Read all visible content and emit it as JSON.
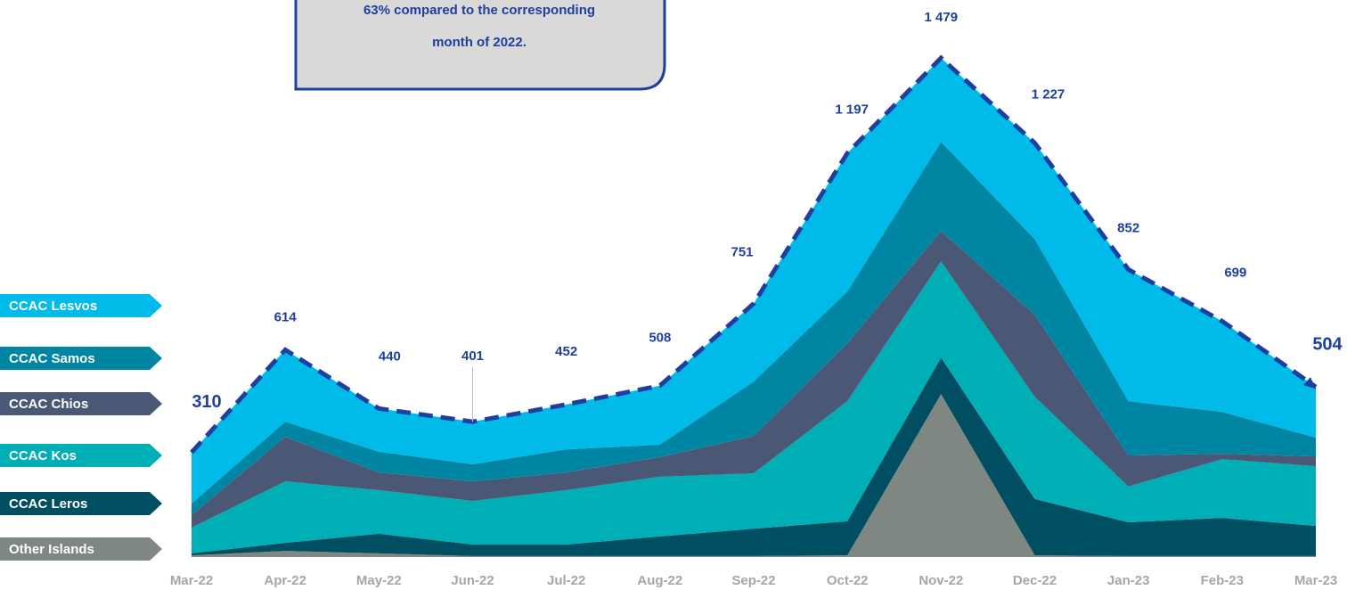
{
  "chart_data": {
    "type": "stacked_area",
    "annotation": [
      "63% compared to the corresponding",
      "month of 2022."
    ],
    "categories": [
      "Mar-22",
      "Apr-22",
      "May-22",
      "Jun-22",
      "Jul-22",
      "Aug-22",
      "Sep-22",
      "Oct-22",
      "Nov-22",
      "Dec-22",
      "Jan-23",
      "Feb-23",
      "Mar-23"
    ],
    "series": [
      {
        "name": "CCAC Lesvos",
        "color": "#00bbea",
        "values": [
          152,
          213,
          128,
          126,
          133,
          175,
          231,
          410,
          249,
          285,
          390,
          269,
          150
        ]
      },
      {
        "name": "CCAC Samos",
        "color": "#0086a3",
        "values": [
          34,
          45,
          61,
          51,
          68,
          37,
          161,
          153,
          264,
          224,
          161,
          124,
          56
        ]
      },
      {
        "name": "CCAC Chios",
        "color": "#4a5876",
        "values": [
          37,
          132,
          53,
          58,
          53,
          58,
          111,
          172,
          90,
          243,
          92,
          16,
          29
        ]
      },
      {
        "name": "CCAC Kos",
        "color": "#00aeb5",
        "values": [
          76,
          182,
          129,
          129,
          161,
          177,
          164,
          356,
          285,
          303,
          106,
          174,
          177
        ]
      },
      {
        "name": "CCAC Leros",
        "color": "#004e61",
        "values": [
          6,
          24,
          58,
          34,
          34,
          58,
          81,
          101,
          108,
          167,
          100,
          113,
          89
        ]
      },
      {
        "name": "Other Islands",
        "color": "#7f8783",
        "values": [
          5,
          18,
          11,
          3,
          3,
          3,
          3,
          5,
          483,
          5,
          3,
          3,
          3
        ]
      }
    ],
    "total": {
      "color": "#1f3f9f",
      "values": [
        310,
        614,
        440,
        401,
        452,
        508,
        751,
        1197,
        1479,
        1227,
        852,
        699,
        504
      ],
      "value_labels": [
        "310",
        "614",
        "440",
        "401",
        "452",
        "508",
        "751",
        "1 197",
        "1 479",
        "1 227",
        "852",
        "699",
        "504"
      ]
    },
    "ylim": [
      0,
      1479
    ]
  }
}
